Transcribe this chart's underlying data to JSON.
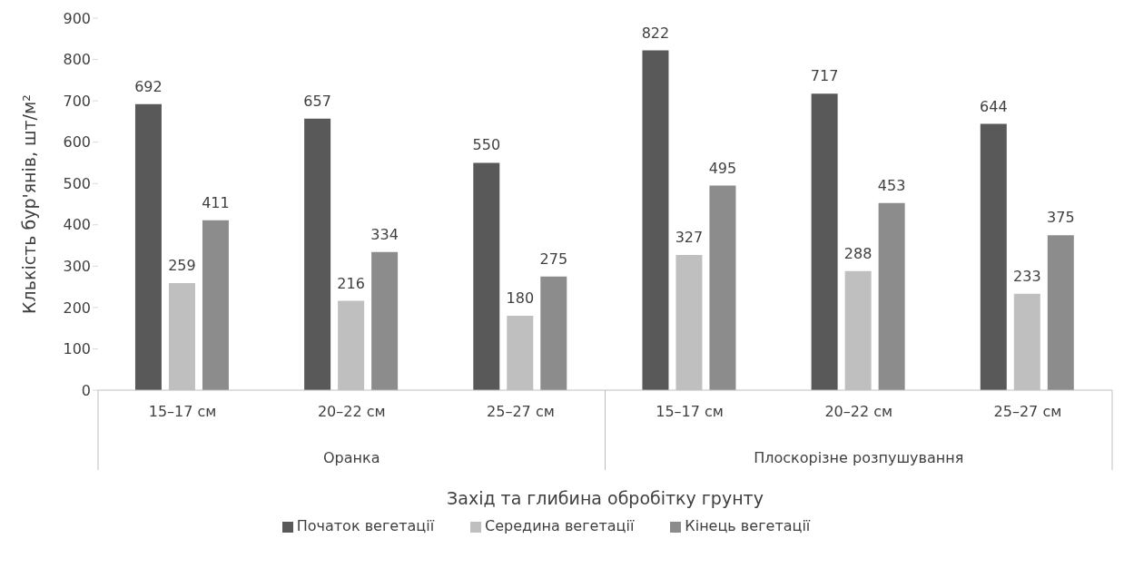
{
  "chart_data": {
    "type": "bar",
    "xlabel": "Захід та глибина обробітку грунту",
    "ylabel": "Клькість бур'янів, шт/м²",
    "categories": [
      "15–17 см",
      "20–22 см",
      "25–27 см",
      "15–17 см",
      "20–22 см",
      "25–27 см"
    ],
    "annotations": [
      "Оранка",
      "Плоскорізне розпушування"
    ],
    "series": [
      {
        "name": "Початок вегетації",
        "color": "#595959",
        "values": [
          692,
          657,
          550,
          822,
          717,
          644
        ]
      },
      {
        "name": "Середина вегетації",
        "color": "#bfbfbf",
        "values": [
          259,
          216,
          180,
          327,
          288,
          233
        ]
      },
      {
        "name": "Кінець вегетації",
        "color": "#8c8c8c",
        "values": [
          411,
          334,
          275,
          495,
          453,
          375
        ]
      }
    ],
    "ylim": [
      0,
      900
    ],
    "yticks": [
      0,
      100,
      200,
      300,
      400,
      500,
      600,
      700,
      800,
      900
    ],
    "data_labels": true,
    "grid": false,
    "legend": "bottom"
  }
}
